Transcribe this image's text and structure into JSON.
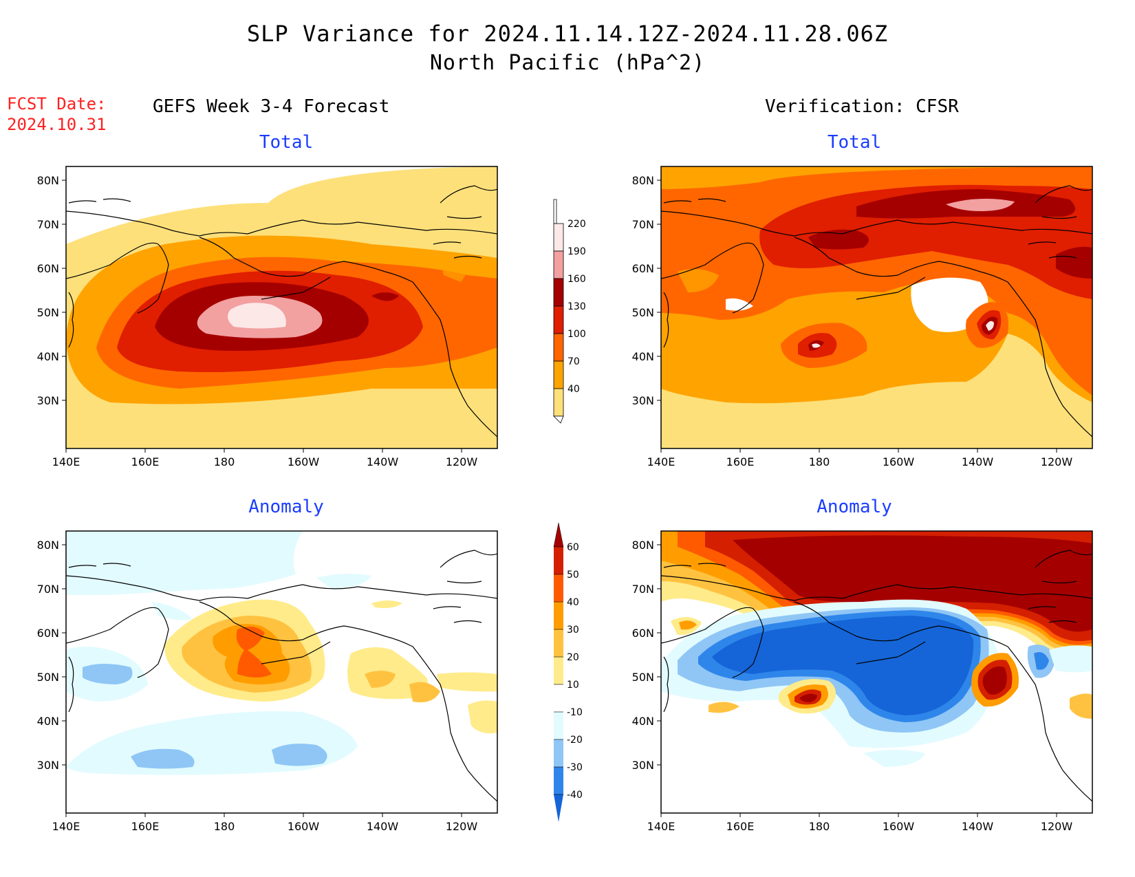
{
  "header": {
    "title_line1": "SLP Variance for 2024.11.14.12Z-2024.11.28.06Z",
    "title_line2": "North Pacific (hPa^2)",
    "fcst_label": "FCST Date:",
    "fcst_date": "2024.10.31"
  },
  "columns": {
    "left": "GEFS Week 3-4 Forecast",
    "right": "Verification: CFSR"
  },
  "panels": {
    "top_left": "Total",
    "top_right": "Total",
    "bottom_left": "Anomaly",
    "bottom_right": "Anomaly"
  },
  "axes": {
    "lat_labels": [
      "80N",
      "70N",
      "60N",
      "50N",
      "40N",
      "30N"
    ],
    "lon_labels": [
      "140E",
      "160E",
      "180",
      "160W",
      "140W",
      "120W"
    ]
  },
  "colorbars": {
    "total": {
      "levels": [
        "40",
        "70",
        "100",
        "130",
        "160",
        "190",
        "220"
      ],
      "colors": [
        "#fde07a",
        "#ffa300",
        "#ff6600",
        "#e01e00",
        "#a50000",
        "#f2a0a0",
        "#fde8e8"
      ]
    },
    "anomaly": {
      "levels": [
        "-40",
        "-30",
        "-20",
        "-10",
        "10",
        "20",
        "30",
        "40",
        "50",
        "60"
      ],
      "colors": [
        "#1565d8",
        "#2f86ea",
        "#8fc6f5",
        "#e2fbff",
        "#ffffff",
        "#ffeb8a",
        "#ffc240",
        "#ff9d00",
        "#ff5a00",
        "#d42000",
        "#a50000"
      ]
    }
  },
  "colors": {
    "land_line": "#000000",
    "title_blue": "#1a3cff",
    "fcst_red": "#ff2020"
  }
}
